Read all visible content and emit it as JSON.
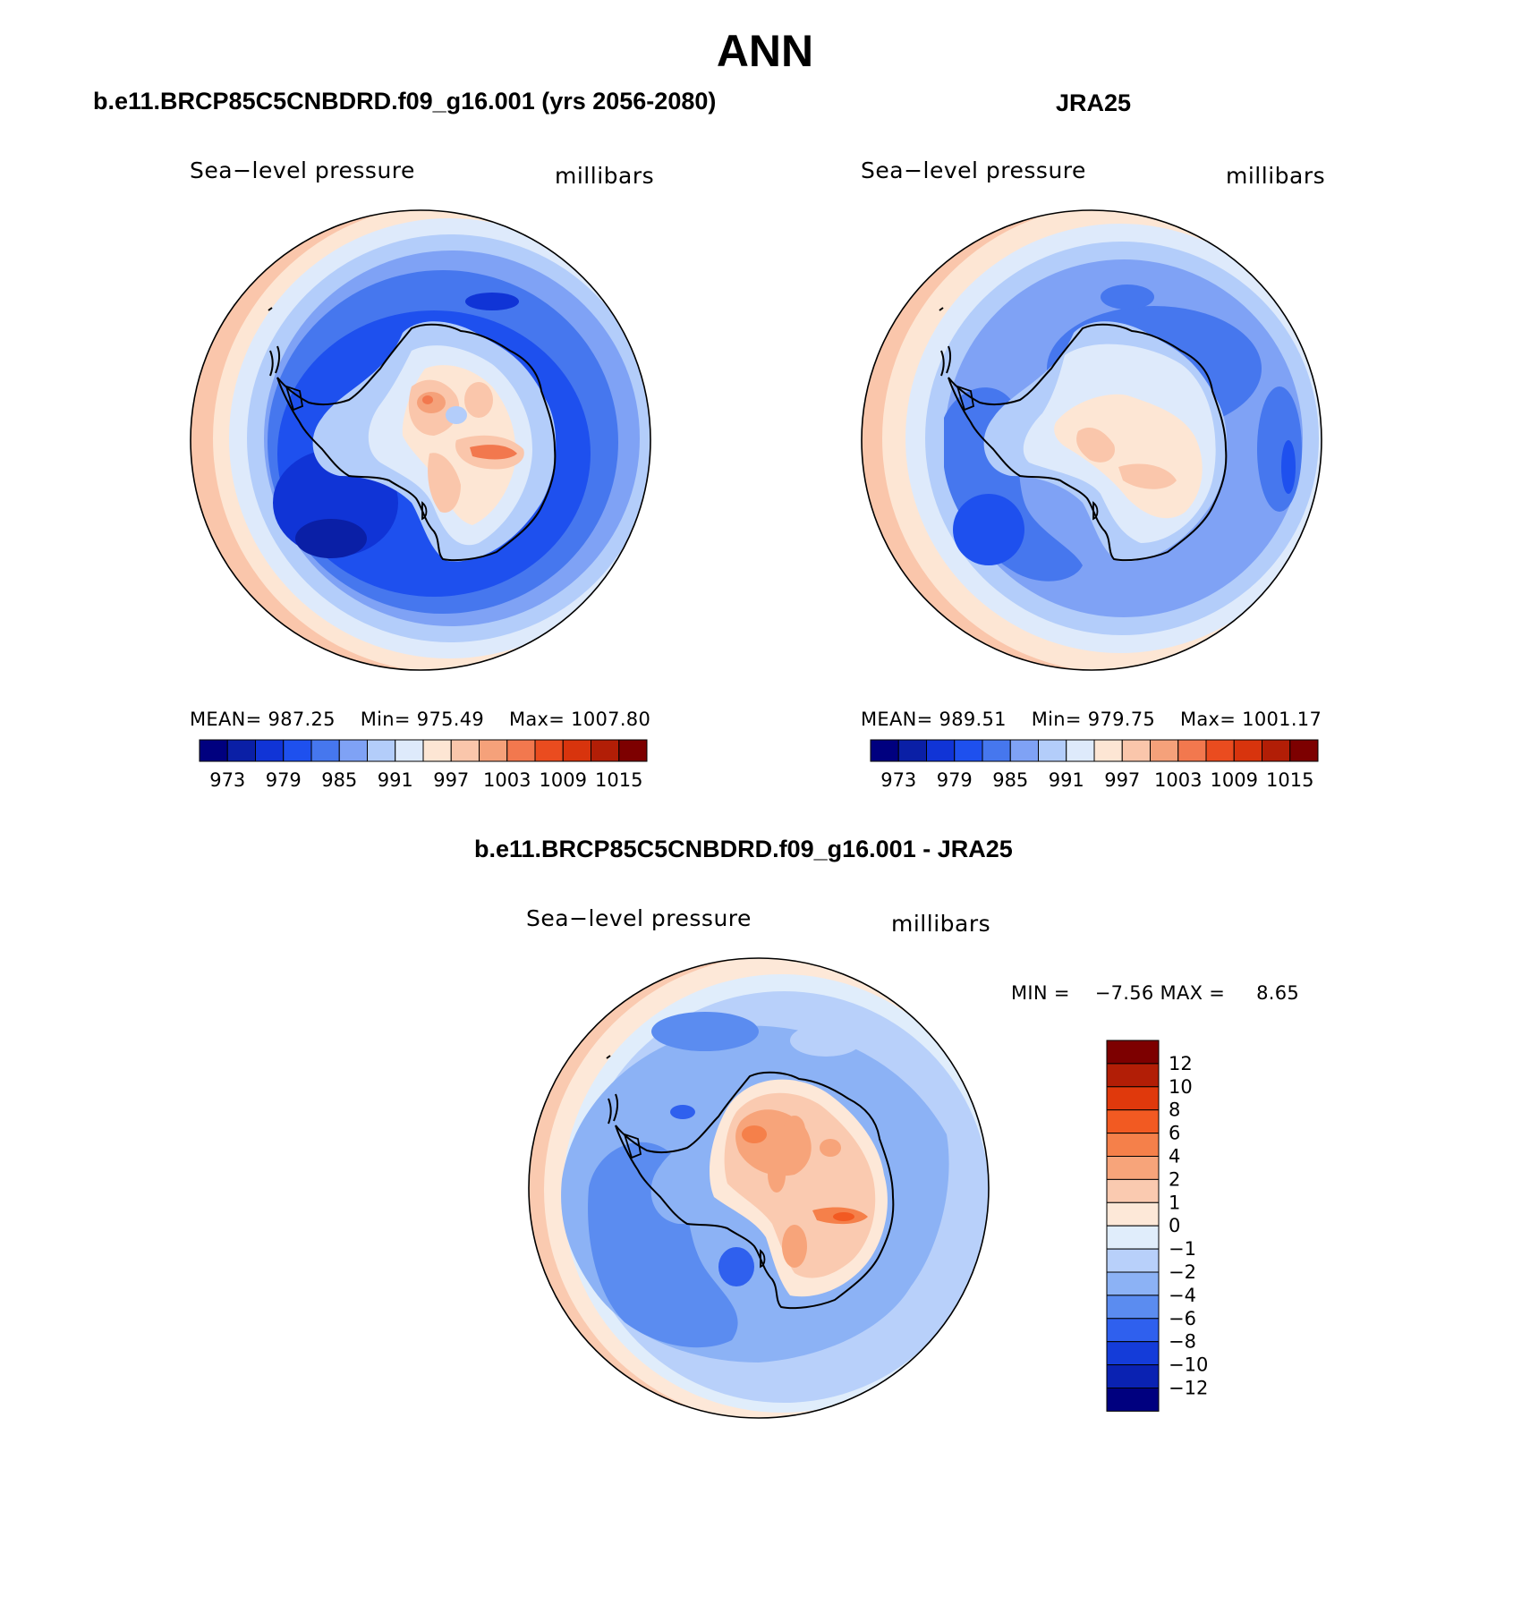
{
  "title": "ANN",
  "panels": [
    {
      "id": "model",
      "title": "b.e11.BRCP85C5CNBDRD.f09_g16.001 (yrs 2056-2080)",
      "field_label": "Sea−level pressure",
      "units_label": "millibars",
      "stats": {
        "mean_label": "MEAN=",
        "mean": "987.25",
        "min_label": "Min=",
        "min": "975.49",
        "max_label": "Max=",
        "max": "1007.80"
      }
    },
    {
      "id": "obs",
      "title": "JRA25",
      "field_label": "Sea−level pressure",
      "units_label": "millibars",
      "stats": {
        "mean_label": "MEAN=",
        "mean": "989.51",
        "min_label": "Min=",
        "min": "979.75",
        "max_label": "Max=",
        "max": "1001.17"
      }
    },
    {
      "id": "diff",
      "title": "b.e11.BRCP85C5CNBDRD.f09_g16.001 - JRA25",
      "field_label": "Sea−level pressure",
      "units_label": "millibars",
      "stats": {
        "min_label": "MIN =",
        "min": "−7.56",
        "max_label": "MAX =",
        "max": "8.65"
      }
    }
  ],
  "colorbar_abs": {
    "colors": [
      "#00007f",
      "#0a1fa6",
      "#1034d6",
      "#1e50ee",
      "#4677ee",
      "#7fa2f5",
      "#b3cdfa",
      "#deeafb",
      "#fde6d4",
      "#fac6ab",
      "#f5a17a",
      "#f2784e",
      "#ea4c1f",
      "#d8340d",
      "#b21e06",
      "#7d0000"
    ],
    "tick_labels": [
      "973",
      "979",
      "985",
      "991",
      "997",
      "1003",
      "1009",
      "1015"
    ]
  },
  "colorbar_diff": {
    "colors": [
      "#7d0000",
      "#b21e06",
      "#e0390c",
      "#f25a22",
      "#f5804a",
      "#f7a47a",
      "#facab0",
      "#fde8d8",
      "#e0edfb",
      "#b8d0fa",
      "#8cb2f5",
      "#5b8cf0",
      "#2f60ee",
      "#143cd9",
      "#0a22b2",
      "#00007f"
    ],
    "tick_labels": [
      "12",
      "10",
      "8",
      "6",
      "4",
      "2",
      "1",
      "0",
      "−1",
      "−2",
      "−4",
      "−6",
      "−8",
      "−10",
      "−12"
    ]
  },
  "chart_data": [
    {
      "type": "heatmap",
      "title": "b.e11.BRCP85C5CNBDRD.f09_g16.001 (yrs 2056-2080)",
      "variable": "Sea−level pressure",
      "units": "millibars",
      "projection": "south polar stereographic",
      "mean": 987.25,
      "min": 975.49,
      "max": 1007.8,
      "contour_levels": [
        970,
        973,
        976,
        979,
        982,
        985,
        988,
        991,
        994,
        997,
        1000,
        1003,
        1006,
        1009,
        1012,
        1015
      ]
    },
    {
      "type": "heatmap",
      "title": "JRA25",
      "variable": "Sea−level pressure",
      "units": "millibars",
      "projection": "south polar stereographic",
      "mean": 989.51,
      "min": 979.75,
      "max": 1001.17,
      "contour_levels": [
        970,
        973,
        976,
        979,
        982,
        985,
        988,
        991,
        994,
        997,
        1000,
        1003,
        1006,
        1009,
        1012,
        1015
      ]
    },
    {
      "type": "heatmap",
      "title": "b.e11.BRCP85C5CNBDRD.f09_g16.001 - JRA25",
      "variable": "Sea−level pressure",
      "units": "millibars",
      "projection": "south polar stereographic",
      "min": -7.56,
      "max": 8.65,
      "contour_levels": [
        -12,
        -10,
        -8,
        -6,
        -4,
        -2,
        -1,
        0,
        1,
        2,
        4,
        6,
        8,
        10,
        12
      ]
    }
  ]
}
